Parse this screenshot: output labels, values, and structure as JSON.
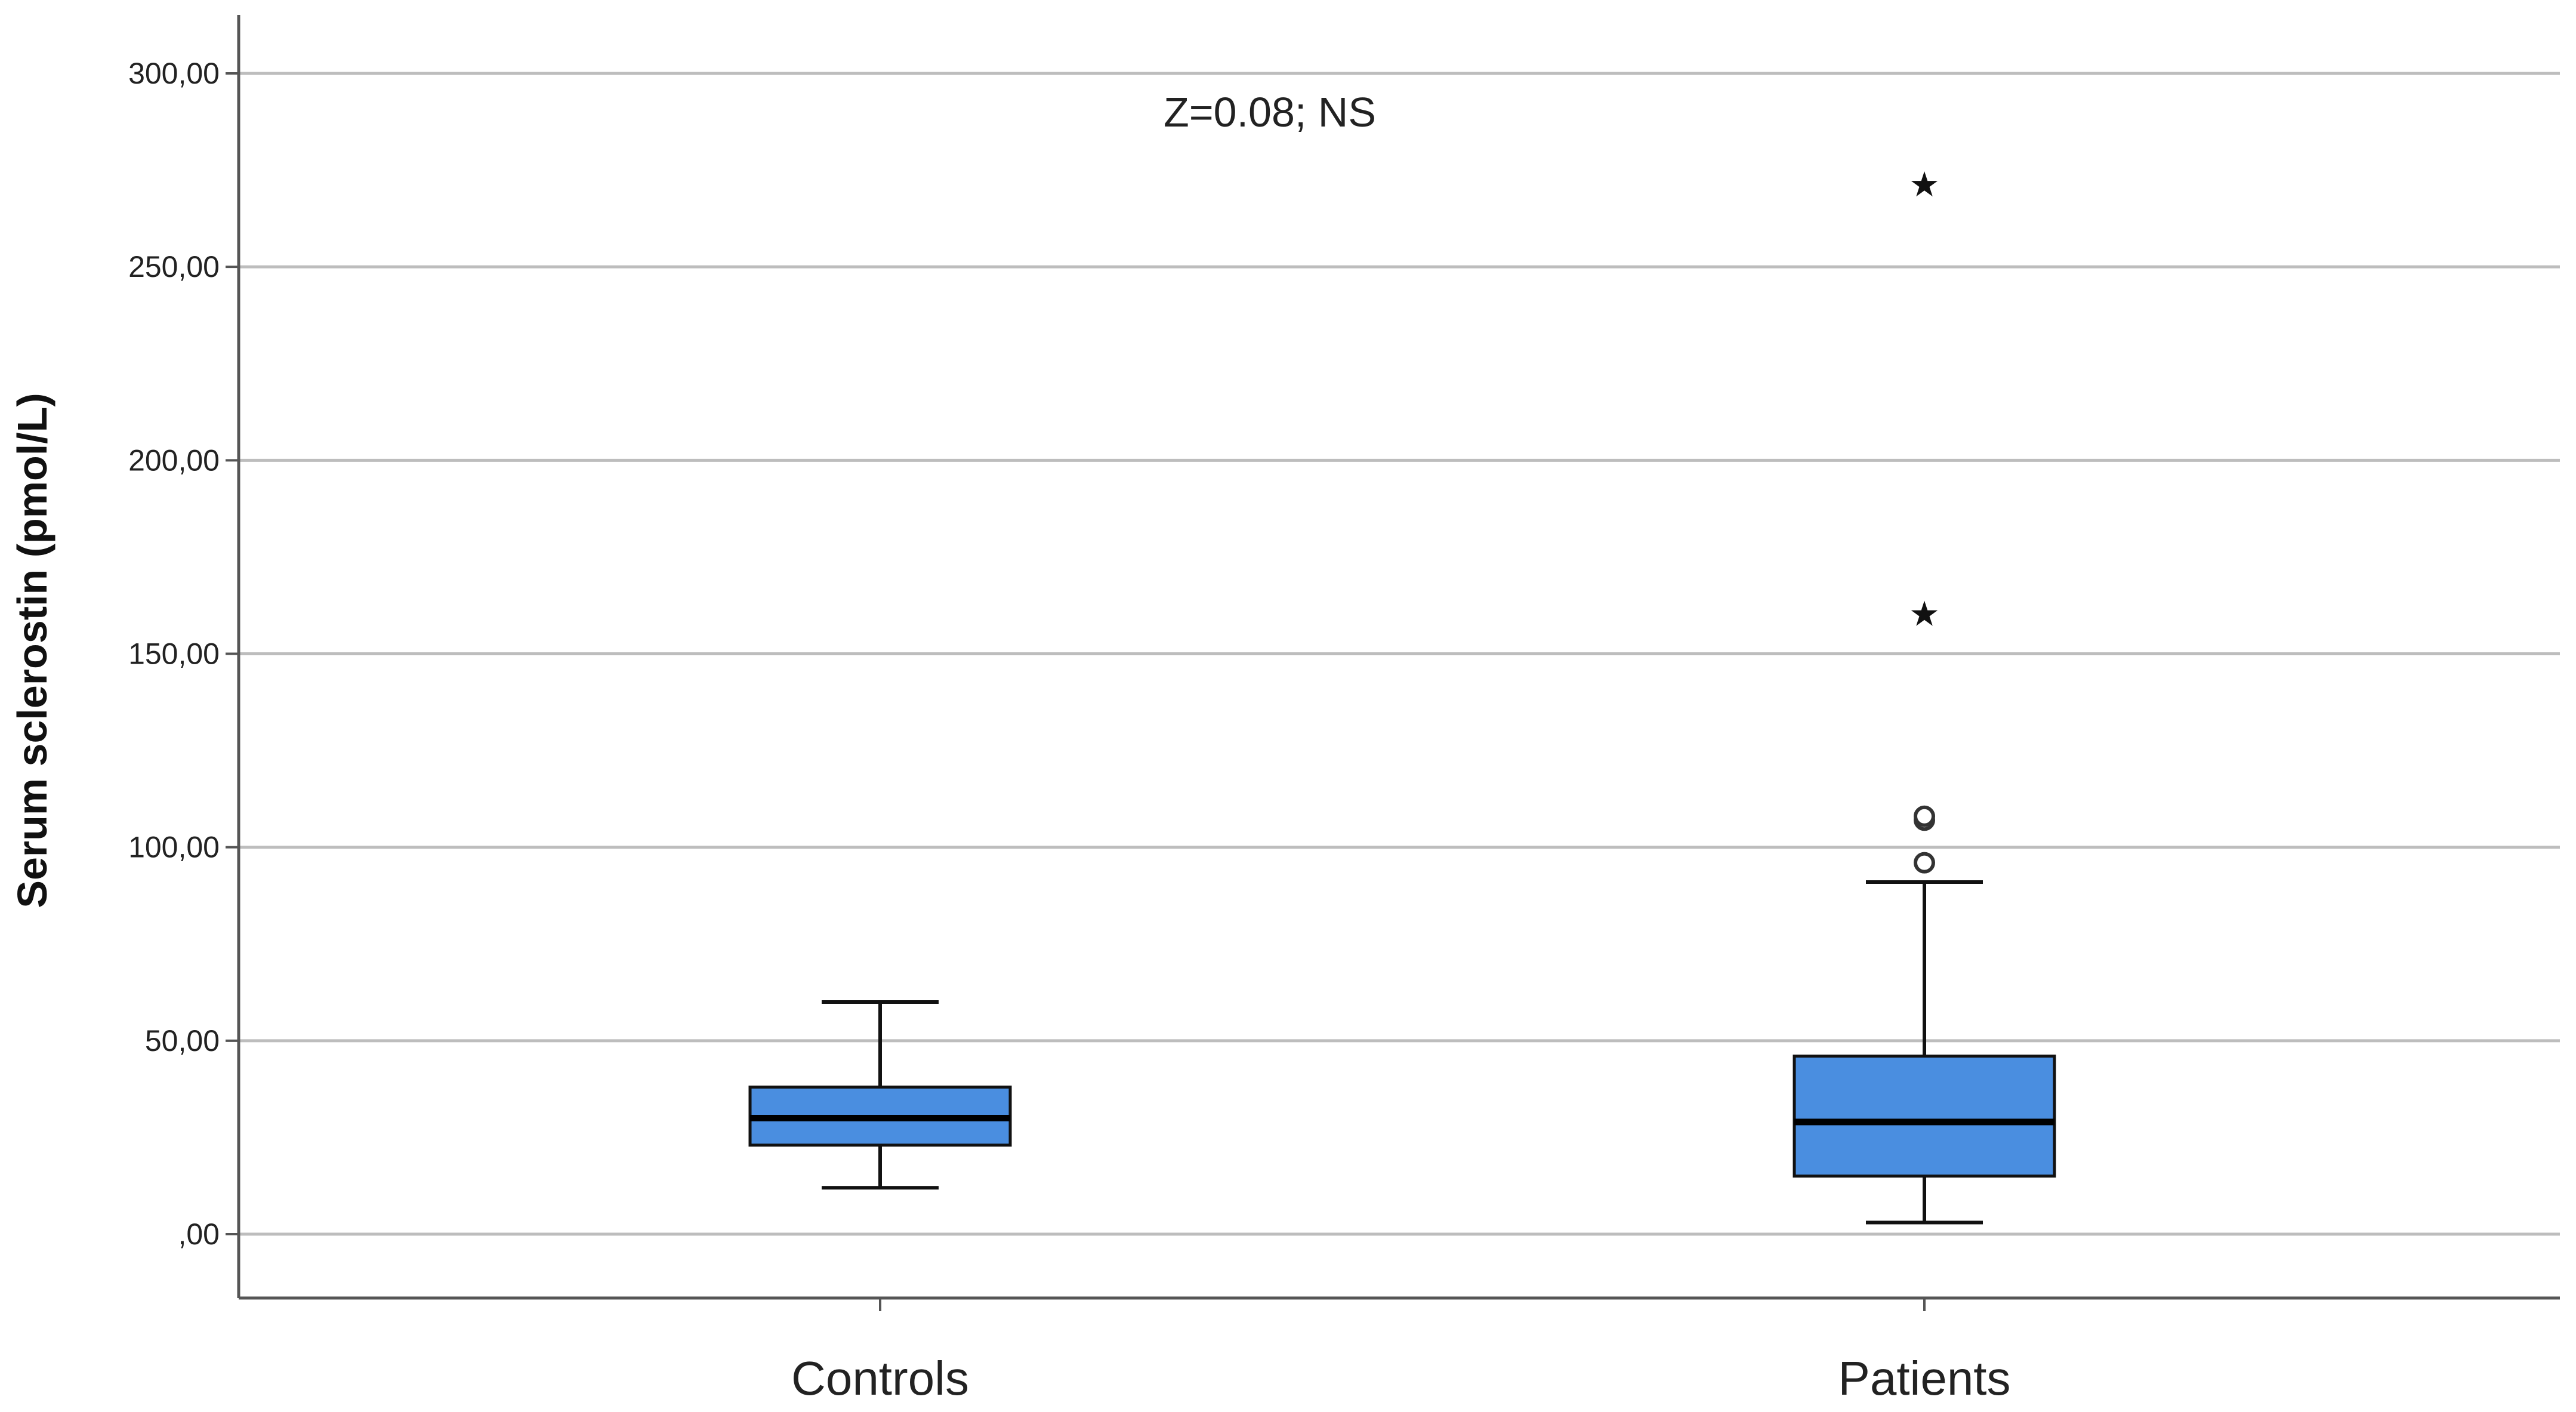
{
  "chart_data": {
    "type": "boxplot",
    "title": "",
    "xlabel": "",
    "ylabel": "Serum sclerostin (pmol/L)",
    "ylim": [
      -17,
      318
    ],
    "yticks": [
      0,
      50,
      100,
      150,
      200,
      250,
      300
    ],
    "ytick_labels": [
      ",00",
      "50,00",
      "100,00",
      "150,00",
      "200,00",
      "250,00",
      "300,00"
    ],
    "grid": "horizontal",
    "categories": [
      "Controls",
      "Patients"
    ],
    "boxes": [
      {
        "category": "Controls",
        "whisker_low": 12,
        "q1": 23,
        "median": 30,
        "q3": 38,
        "whisker_high": 60,
        "outliers": [],
        "extremes": []
      },
      {
        "category": "Patients",
        "whisker_low": 3,
        "q1": 15,
        "median": 29,
        "q3": 46,
        "whisker_high": 91,
        "outliers": [
          96,
          107,
          108
        ],
        "extremes": [
          160,
          271
        ]
      }
    ],
    "annotation": "Z=0.08; NS",
    "box_color": "#4a8ee0",
    "outlier_symbol": "circle",
    "extreme_symbol": "star"
  }
}
